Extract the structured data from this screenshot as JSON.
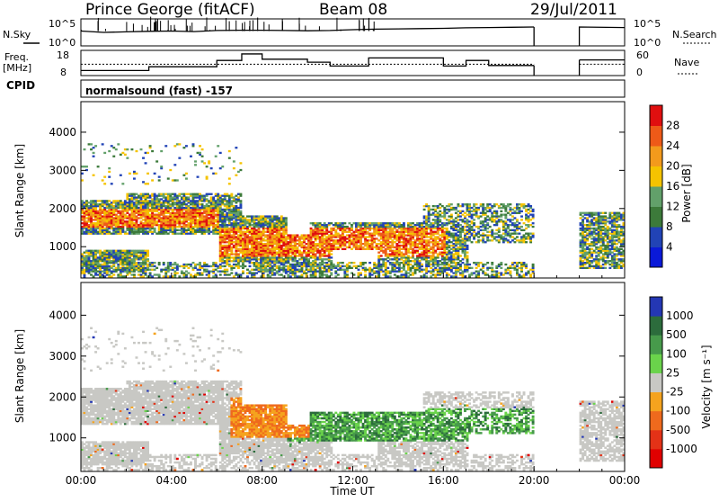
{
  "header": {
    "station": "Prince George (fitACF)",
    "beam": "Beam 08",
    "date": "29/Jul/2011"
  },
  "panel_labels": {
    "nsky": "N.Sky",
    "nsearch": "N.Search",
    "freq": "Freq.",
    "freq_unit": "[MHz]",
    "nave": "Nave",
    "cpid": "CPID",
    "cpid_value": "normalsound (fast) -157"
  },
  "chart_data": [
    {
      "type": "line",
      "name": "noise",
      "ylabel": "N.Sky",
      "yticks_left": [
        "10^5",
        "10^0"
      ],
      "ylabel_right": "N.Search",
      "yticks_right": [
        "10^5",
        "10^0"
      ],
      "x": [
        0,
        1,
        2,
        3,
        4,
        5,
        6,
        7,
        8,
        9,
        10,
        11,
        12,
        13,
        14,
        15,
        16,
        17,
        18,
        19,
        20
      ],
      "values_rel": [
        0.45,
        0.5,
        0.48,
        0.46,
        0.45,
        0.47,
        0.43,
        0.42,
        0.42,
        0.43,
        0.44,
        0.43,
        0.4,
        0.38,
        0.37,
        0.36,
        0.35,
        0.33,
        0.32,
        0.31,
        0.3
      ],
      "resume_x": [
        22,
        24
      ],
      "resume_values_rel": [
        0.3,
        0.32
      ]
    },
    {
      "type": "line",
      "name": "frequency",
      "ylabel": "Freq. [MHz]",
      "yticks_left": [
        "18",
        "8"
      ],
      "ylabel_right": "Nave",
      "yticks_right": [
        "60",
        "0"
      ],
      "steps": [
        [
          0,
          10.0
        ],
        [
          3,
          11.5
        ],
        [
          6,
          14.0
        ],
        [
          7.1,
          16.6
        ],
        [
          8,
          14.5
        ],
        [
          10,
          13.3
        ],
        [
          11,
          11.8
        ],
        [
          12.7,
          15.0
        ],
        [
          16,
          11.8
        ],
        [
          17,
          14.0
        ],
        [
          18,
          12.0
        ],
        [
          20,
          null
        ],
        [
          22,
          14.2
        ],
        [
          24,
          14.2
        ]
      ],
      "nave_level": 12.5
    },
    {
      "type": "heatmap",
      "name": "power",
      "ylabel": "Slant Range [km]",
      "yticks": [
        1000,
        2000,
        3000,
        4000
      ],
      "ylim": [
        180,
        4800
      ],
      "xlim": [
        0,
        24
      ],
      "colorbar_label": "Power [dB]",
      "colorbar_ticks": [
        4,
        8,
        12,
        16,
        20,
        24,
        28
      ],
      "colors": [
        "#0a19d8",
        "#2143b6",
        "#3c7a3a",
        "#62a06a",
        "#f5c300",
        "#f39a1c",
        "#ee5a18",
        "#e00f0f"
      ]
    },
    {
      "type": "heatmap",
      "name": "velocity",
      "ylabel": "Slant Range [km]",
      "yticks": [
        1000,
        2000,
        3000,
        4000
      ],
      "ylim": [
        180,
        4800
      ],
      "xlim": [
        0,
        24
      ],
      "xticks": [
        "00:00",
        "04:00",
        "08:00",
        "12:00",
        "16:00",
        "20:00",
        "00:00"
      ],
      "xlabel": "Time UT",
      "colorbar_label": "Velocity [m s⁻¹]",
      "colorbar_ticks": [
        1000,
        500,
        100,
        25,
        -25,
        -100,
        -500,
        -1000
      ],
      "colors": [
        "#2437b4",
        "#2c6c3c",
        "#479a4b",
        "#6ad34b",
        "#c8c8c4",
        "#f5a31e",
        "#ef6a1d",
        "#e33217",
        "#e00000"
      ]
    }
  ]
}
